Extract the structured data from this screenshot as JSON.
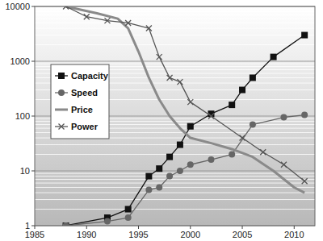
{
  "chart_data": {
    "type": "line",
    "log": "y",
    "grid": true,
    "legend": "upper left",
    "xlim": [
      1985,
      2012
    ],
    "xticks": [
      1985,
      1990,
      1995,
      2000,
      2005,
      2010
    ],
    "ylim": [
      1,
      10000
    ],
    "yticks": [
      1,
      10,
      100,
      1000,
      10000
    ],
    "series": [
      {
        "name": "Capacity",
        "color": "#111111",
        "marker": "square",
        "line_style": "solid",
        "x": [
          1988,
          1992,
          1994,
          1996,
          1997,
          1998,
          1999,
          2000,
          2002,
          2004,
          2005,
          2006,
          2008,
          2011
        ],
        "values": [
          1,
          1.4,
          2,
          8,
          11,
          18,
          30,
          65,
          110,
          160,
          300,
          500,
          1200,
          3000
        ]
      },
      {
        "name": "Speed",
        "color": "#666666",
        "marker": "circle",
        "line_style": "solid",
        "x": [
          1988,
          1992,
          1994,
          1996,
          1997,
          1998,
          1999,
          2000,
          2002,
          2004,
          2006,
          2009,
          2011
        ],
        "values": [
          1,
          1.2,
          1.4,
          4.5,
          5,
          8,
          10,
          13,
          16,
          20,
          70,
          95,
          105
        ]
      },
      {
        "name": "Price",
        "color": "#8a8a8a",
        "marker": "none",
        "line_style": "thick",
        "x": [
          1988,
          1991,
          1993,
          1994,
          1995,
          1996,
          1997,
          1998,
          1999,
          2000,
          2002,
          2004,
          2006,
          2008,
          2010,
          2011
        ],
        "values": [
          10000,
          7500,
          6000,
          4000,
          1500,
          500,
          200,
          100,
          60,
          40,
          32,
          25,
          18,
          10,
          5,
          4
        ]
      },
      {
        "name": "Power",
        "color": "#555555",
        "marker": "x",
        "line_style": "solid",
        "x": [
          1988,
          1990,
          1992,
          1994,
          1996,
          1997,
          1998,
          1999,
          2000,
          2002,
          2005,
          2007,
          2009,
          2011
        ],
        "values": [
          10000,
          6500,
          5500,
          5000,
          4000,
          1200,
          500,
          420,
          180,
          100,
          40,
          22,
          13,
          6.5
        ]
      }
    ]
  }
}
